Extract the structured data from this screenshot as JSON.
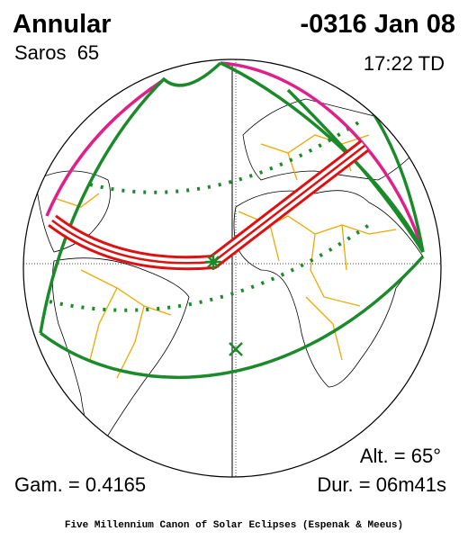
{
  "header": {
    "type": "Annular",
    "date": "-0316 Jan 08",
    "saros": "Saros  65",
    "time": "17:22 TD"
  },
  "stats": {
    "altitude": "Alt. = 65°",
    "gamma": "Gam. = 0.4165",
    "duration": "Dur. = 06m41s"
  },
  "footer": "Five Millennium Canon of Solar Eclipses (Espenak & Meeus)"
}
